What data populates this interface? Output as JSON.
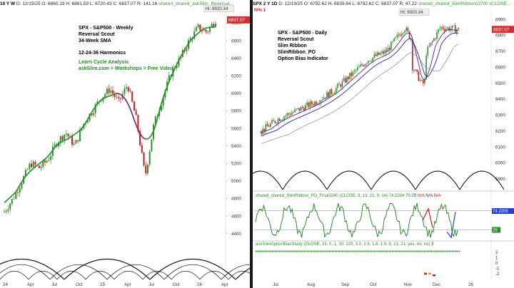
{
  "left": {
    "header": {
      "symbol": "10 Y W",
      "date": "D: 12/15/25",
      "open": "O: 6860.19",
      "high": "H: 6861.59",
      "low": "L: 6720.43",
      "close": "C: 6837.07",
      "range": "R: 141.16",
      "study": "shared_shared_askSlim_Reversal..."
    },
    "title_lines": [
      "SPX - S&P500 - Weekly",
      "Reversal Scout",
      "34-Week SMA"
    ],
    "harmonics_label": "12-24-36 Harmonics",
    "promo_lines": [
      "Learn Cycle Analysis",
      "askSlim.com > Workshops > Free Video"
    ],
    "hi_label": "Hi: 6920.34",
    "last_price": "6837.07",
    "price_axis": [
      "6800",
      "6600",
      "6400",
      "6200",
      "6000",
      "5800",
      "5600",
      "5400",
      "5200",
      "5000",
      "4800",
      "4600",
      "4400"
    ],
    "time_axis": [
      "24",
      "Apr",
      "Jul",
      "Oct",
      "25",
      "Apr",
      "Jul",
      "Oct",
      "26",
      "Apr"
    ]
  },
  "right": {
    "header": {
      "symbol": "SPX 2 Y 1D",
      "date": "D: 12/19/25",
      "open": "O: 6792.62",
      "high": "H: 6839.84",
      "low": "L: 6792.62",
      "close": "C: 6837.07",
      "range": "R: 47.22",
      "study": "shared_shared_SlimRibbons3700 (CLOSE..."
    },
    "badge": "IV% 1",
    "title_lines": [
      "SPX - S&P500 - Daily",
      "Reversal Scout",
      "Slim Ribbon",
      "SlimRibbon_PO",
      "Option Bias Indicator"
    ],
    "hi_label": "Hi: 6920.34",
    "last_price": "6837.07",
    "price_axis": [
      "6900",
      "6800",
      "6700",
      "6600",
      "6500",
      "6400",
      "6300",
      "6200",
      "6100",
      "6000",
      "5900"
    ],
    "osc_header": "shared_shared_SlimRibbon_PO_Final3340 (CLOSE, 8, 13, 21, 0, 14) 74.2204",
    "osc_values": [
      "75",
      "25",
      "N/A",
      "N/A",
      "N/A"
    ],
    "osc_axis": [
      "74.2205",
      "25"
    ],
    "bias_header": "askSlimOptionBiasStudy (CLOSE, 15, 0, 1, 10, 129, 3.0, 2.5, 1.8, 1.0, 8, 13, 21, yes, no, no)",
    "bias_value": "3",
    "bias_axis": [
      "2",
      "1",
      "0",
      "-1",
      "-2"
    ],
    "time_axis": [
      "Jul",
      "Aug",
      "Sep",
      "Oct",
      "Nov",
      "Dec",
      "26"
    ]
  },
  "chart_data": [
    {
      "type": "line",
      "title": "SPX - S&P500 - Weekly",
      "x": [
        "2023-12",
        "2024-01",
        "2024-02",
        "2024-03",
        "2024-04",
        "2024-05",
        "2024-06",
        "2024-07",
        "2024-08",
        "2024-09",
        "2024-10",
        "2024-11",
        "2024-12",
        "2025-01",
        "2025-02",
        "2025-03",
        "2025-04",
        "2025-05",
        "2025-06",
        "2025-07",
        "2025-08",
        "2025-09",
        "2025-10",
        "2025-11",
        "2025-12"
      ],
      "series": [
        {
          "values": [
            4650,
            4800,
            5000,
            5200,
            5150,
            5250,
            5450,
            5550,
            5400,
            5650,
            5800,
            5950,
            6050,
            5900,
            6100,
            5700,
            5050,
            5650,
            5950,
            6250,
            6400,
            6600,
            6750,
            6700,
            6837
          ]
        }
      ],
      "ylim": [
        4300,
        6950
      ],
      "hi": 6920.34,
      "last": 6837.07
    },
    {
      "type": "line",
      "title": "SPX - S&P500 - Daily",
      "x": [
        "Jul",
        "Jul",
        "Aug",
        "Aug",
        "Sep",
        "Sep",
        "Oct",
        "Oct",
        "Nov",
        "Nov",
        "Dec",
        "Dec"
      ],
      "series": [
        {
          "values": [
            6200,
            6280,
            6330,
            6380,
            6450,
            6550,
            6650,
            6700,
            6850,
            6650,
            6850,
            6837
          ]
        }
      ],
      "ylim": [
        5850,
        6950
      ],
      "hi": 6920.34,
      "last": 6837.07
    }
  ],
  "colors": {
    "up": "#2f8f2f",
    "down": "#c02020",
    "sma_up": "#1f8f1f",
    "sma_down": "#8a1a6a",
    "ribbon_fast": "#5a1aa0",
    "ribbon_slow": "#1a2a9a",
    "price_badge": "#d23030",
    "arc": "#000000"
  }
}
